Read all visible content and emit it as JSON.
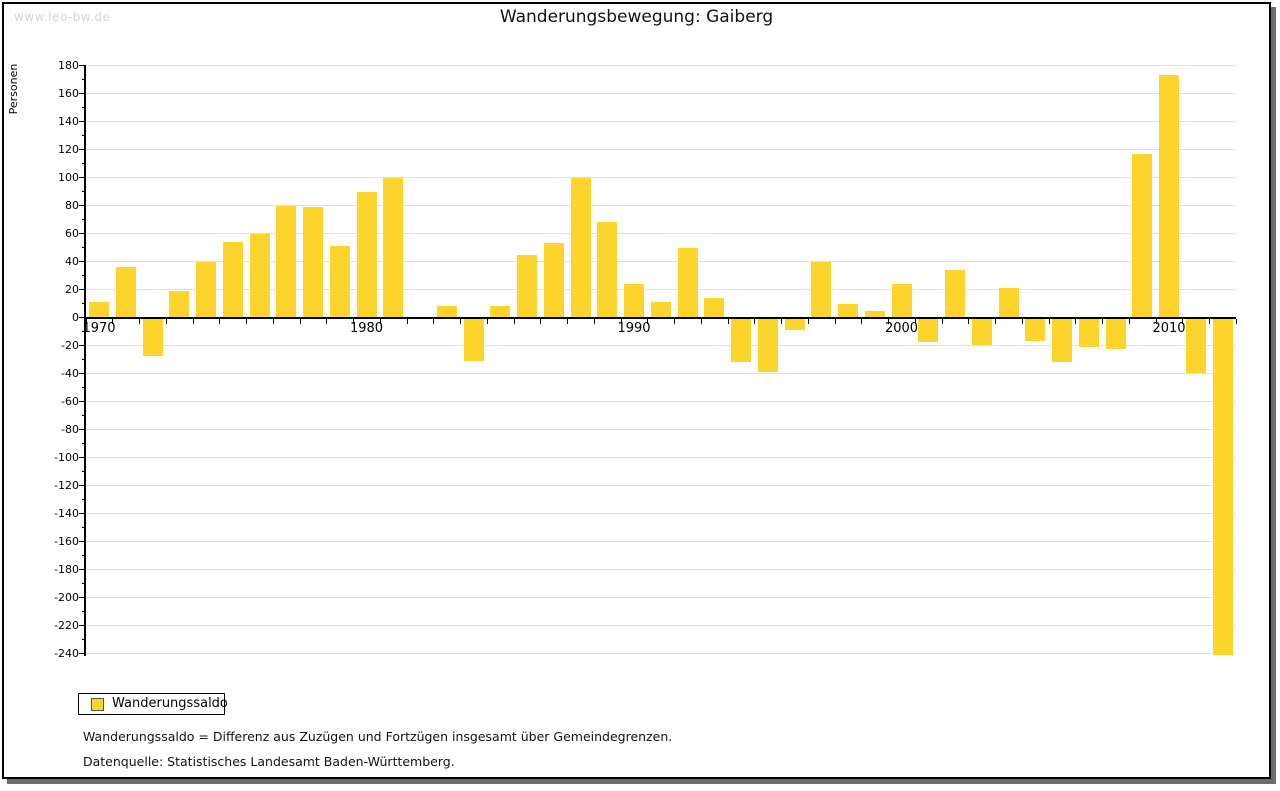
{
  "watermark": "www.leo-bw.de",
  "title": "Wanderungsbewegung: Gaiberg",
  "legend": {
    "label": "Wanderungssaldo"
  },
  "footnotes": {
    "definition": "Wanderungssaldo = Differenz aus Zuzügen und Fortzügen insgesamt über Gemeindegrenzen.",
    "source": "Datenquelle: Statistisches Landesamt Baden-Württemberg."
  },
  "chart_data": {
    "type": "bar",
    "title": "Wanderungsbewegung: Gaiberg",
    "xlabel": "",
    "ylabel": "Personen",
    "x": [
      1970,
      1971,
      1972,
      1973,
      1974,
      1975,
      1976,
      1977,
      1978,
      1979,
      1980,
      1981,
      1982,
      1983,
      1984,
      1985,
      1986,
      1987,
      1988,
      1989,
      1990,
      1991,
      1992,
      1993,
      1994,
      1995,
      1996,
      1997,
      1998,
      1999,
      2000,
      2001,
      2002,
      2003,
      2004,
      2005,
      2006,
      2007,
      2008,
      2009,
      2010,
      2011,
      2012
    ],
    "series": [
      {
        "name": "Wanderungssaldo",
        "values": [
          11,
          36,
          -27,
          19,
          40,
          54,
          60,
          80,
          79,
          51,
          90,
          100,
          0,
          8,
          -30,
          8,
          45,
          53,
          100,
          68,
          24,
          11,
          50,
          14,
          -31,
          -38,
          -8,
          40,
          10,
          5,
          24,
          -17,
          34,
          -19,
          21,
          -16,
          -31,
          -20,
          -22,
          117,
          173,
          -39,
          -240
        ]
      }
    ],
    "ylim": [
      -240,
      180
    ],
    "ytick_step": 20,
    "ytick_minor_step": 10,
    "xticks_labeled": [
      1970,
      1980,
      1990,
      2000,
      2010
    ],
    "grid": true,
    "legend_position": "bottom-left",
    "bar_color": "#fcd42c",
    "gridline_color": "#e0e0e0"
  }
}
